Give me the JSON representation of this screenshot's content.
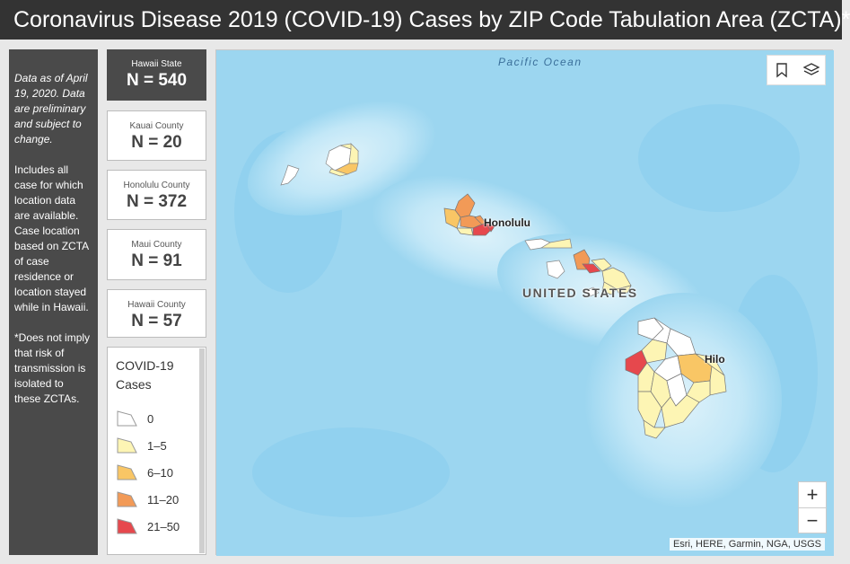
{
  "header": {
    "title": "Coronavirus Disease 2019 (COVID-19) Cases by ZIP Code Tabulation Area (ZCTA)*"
  },
  "notes": {
    "as_of": "Data as of April 19, 2020. Data are preliminary and subject to change.",
    "includes": "Includes all case for which location data are available. Case location based on ZCTA of case residence or location stayed while in Hawaii.",
    "disclaimer": "*Does not imply that risk of transmission is isolated to these ZCTAs."
  },
  "stats": [
    {
      "label": "Hawaii State",
      "value": "N = 540"
    },
    {
      "label": "Kauai County",
      "value": "N = 20"
    },
    {
      "label": "Honolulu County",
      "value": "N = 372"
    },
    {
      "label": "Maui County",
      "value": "N = 91"
    },
    {
      "label": "Hawaii County",
      "value": "N = 57"
    }
  ],
  "legend": {
    "title": "COVID-19 Cases",
    "classes": [
      {
        "label": "0",
        "color": "#ffffff"
      },
      {
        "label": "1–5",
        "color": "#fdf5b4"
      },
      {
        "label": "6–10",
        "color": "#f9c665"
      },
      {
        "label": "11–20",
        "color": "#f29a57"
      },
      {
        "label": "21–50",
        "color": "#e6484d"
      }
    ]
  },
  "map": {
    "ocean_label": "Pacific Ocean",
    "country_label": "UNITED STATES",
    "place_labels": {
      "honolulu": "Honolulu",
      "hilo": "Hilo"
    },
    "zoom_in": "+",
    "zoom_out": "−",
    "attribution": "Esri, HERE, Garmin, NGA, USGS",
    "icons": {
      "bookmark": "bookmark-icon",
      "layers": "layers-icon"
    }
  }
}
